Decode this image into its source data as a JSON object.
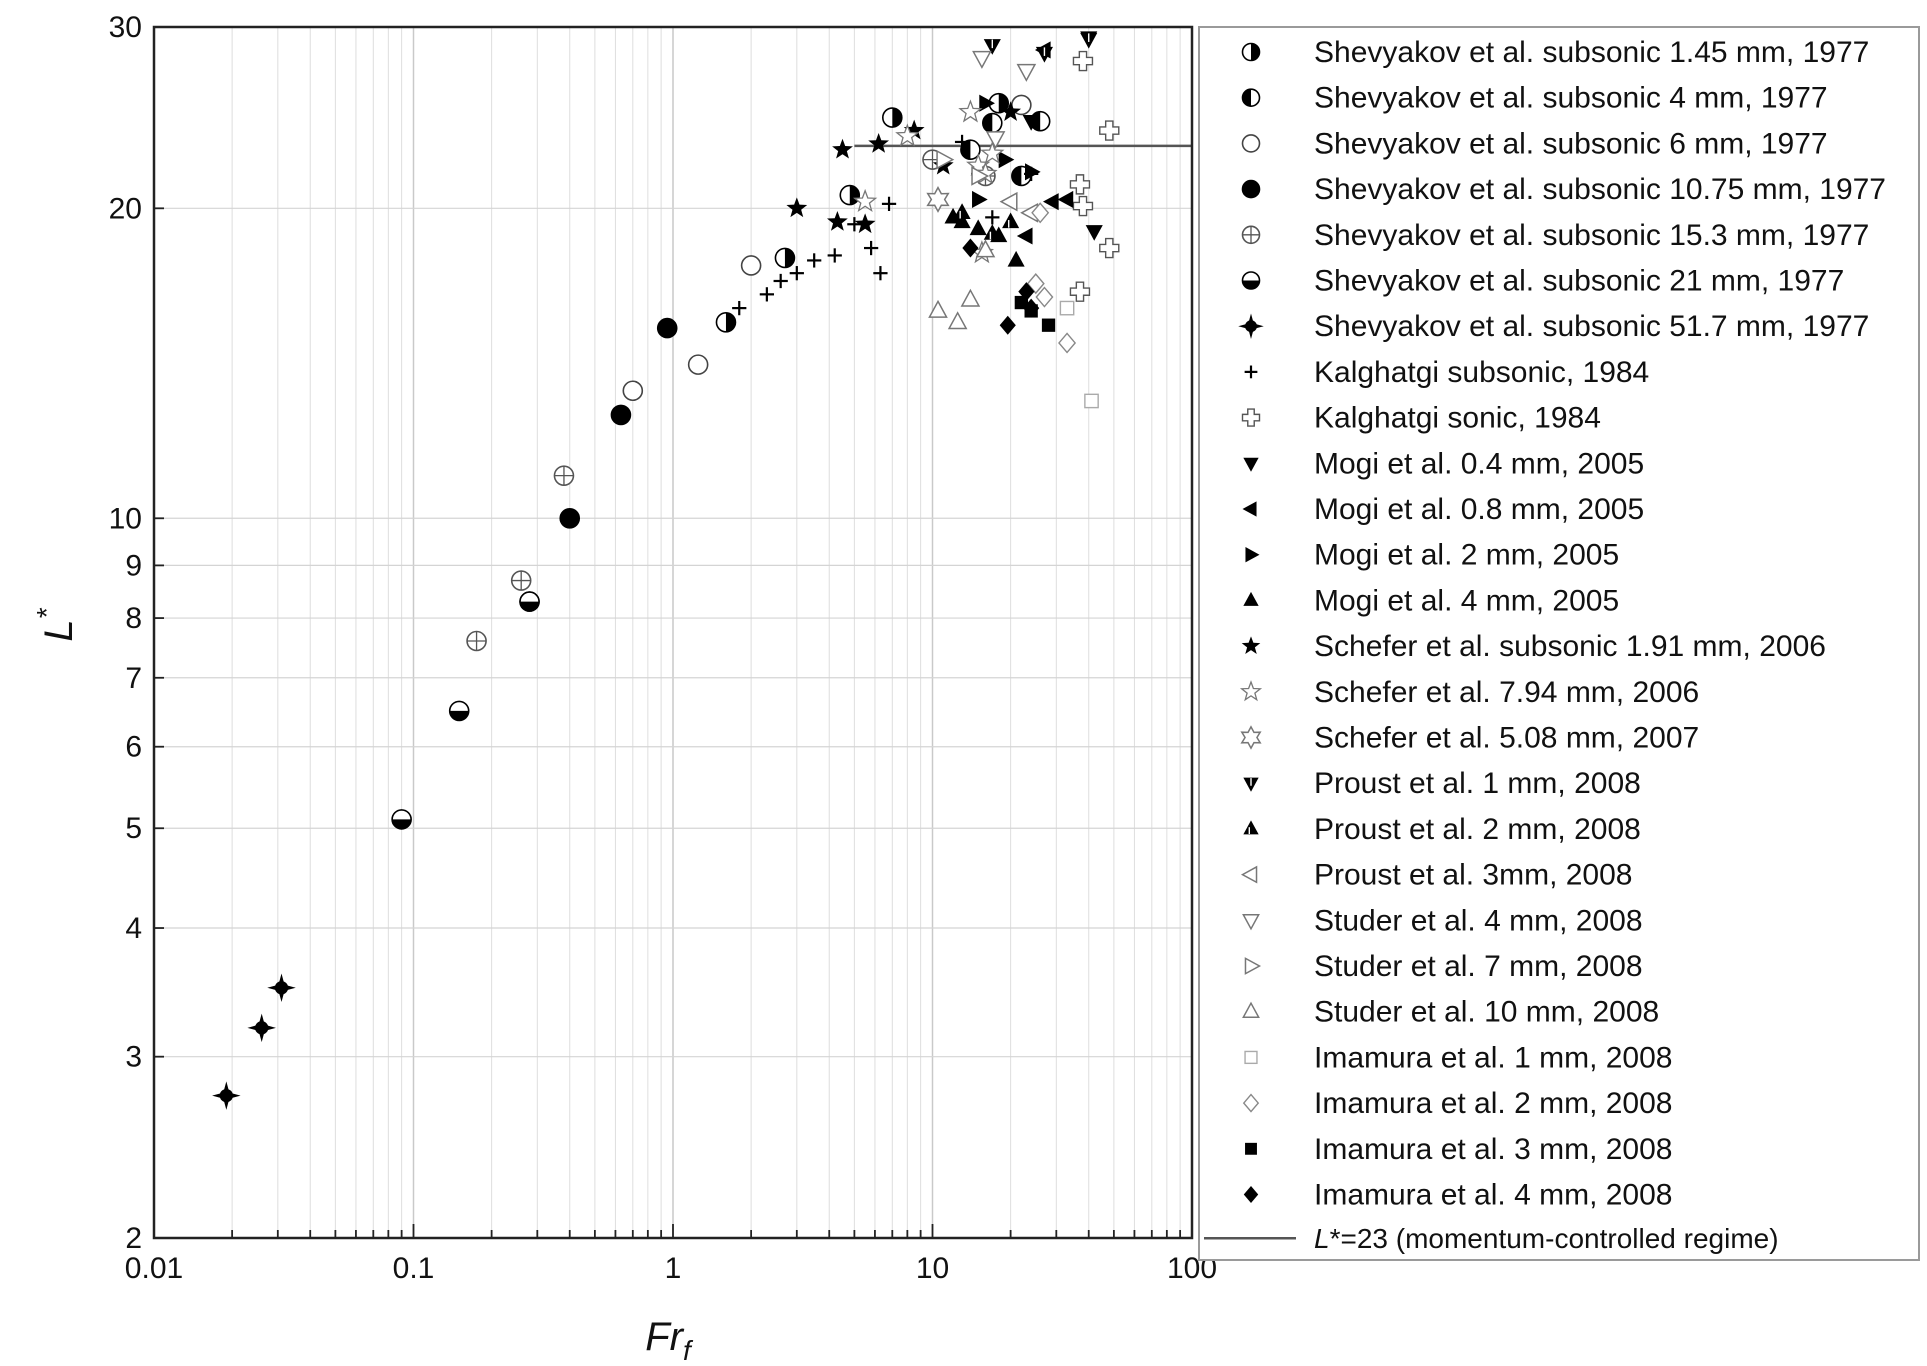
{
  "chart_data": {
    "type": "scatter",
    "x_scale": "log",
    "y_scale": "log",
    "xlim": [
      0.01,
      100
    ],
    "ylim": [
      2,
      30
    ],
    "xlabel_main": "Fr",
    "xlabel_sub": "f",
    "ylabel_main": "L",
    "ylabel_sup": "*",
    "x_ticks": [
      {
        "value": 0.01,
        "label": "0.01"
      },
      {
        "value": 0.1,
        "label": "0.1"
      },
      {
        "value": 1,
        "label": "1"
      },
      {
        "value": 10,
        "label": "10"
      },
      {
        "value": 100,
        "label": "100"
      }
    ],
    "y_ticks": [
      {
        "value": 2,
        "label": "2"
      },
      {
        "value": 3,
        "label": "3"
      },
      {
        "value": 4,
        "label": "4"
      },
      {
        "value": 5,
        "label": "5"
      },
      {
        "value": 6,
        "label": "6"
      },
      {
        "value": 7,
        "label": "7"
      },
      {
        "value": 8,
        "label": "8"
      },
      {
        "value": 9,
        "label": "9"
      },
      {
        "value": 10,
        "label": "10"
      },
      {
        "value": 20,
        "label": "20"
      },
      {
        "value": 30,
        "label": "30"
      }
    ],
    "grid": "vertical minor and major, horizontal at y ticks",
    "legend_position": "right",
    "reference_line": {
      "y": 23,
      "x_start": 5,
      "x_end": 100,
      "label_prefix": "L",
      "label_rest": "*=23 (momentum-controlled regime)"
    },
    "series": [
      {
        "name": "Shevyakov et al. subsonic 1.45 mm, 1977",
        "marker": "half-right",
        "points": [
          [
            7,
            24.5
          ],
          [
            4.8,
            20.6
          ],
          [
            2.7,
            17.9
          ],
          [
            1.6,
            15.5
          ],
          [
            18,
            25.3
          ]
        ]
      },
      {
        "name": "Shevyakov et al. subsonic 4 mm, 1977",
        "marker": "half-left",
        "points": [
          [
            14,
            22.8
          ],
          [
            17,
            24.2
          ],
          [
            22,
            21.5
          ],
          [
            26,
            24.3
          ]
        ]
      },
      {
        "name": "Shevyakov et al. subsonic 6 mm, 1977",
        "marker": "circle-open",
        "points": [
          [
            0.7,
            13.3
          ],
          [
            1.25,
            14.1
          ],
          [
            2,
            17.6
          ],
          [
            22,
            25.2
          ]
        ]
      },
      {
        "name": "Shevyakov et al. subsonic 10.75 mm, 1977",
        "marker": "circle-filled",
        "points": [
          [
            0.95,
            15.3
          ],
          [
            0.63,
            12.6
          ],
          [
            0.4,
            10.0
          ],
          [
            0.28,
            8.3
          ]
        ]
      },
      {
        "name": "Shevyakov et al. subsonic 15.3 mm, 1977",
        "marker": "circle-cross",
        "points": [
          [
            0.38,
            11.0
          ],
          [
            0.26,
            8.7
          ],
          [
            0.175,
            7.6
          ],
          [
            10,
            22.3
          ],
          [
            16,
            21.5
          ]
        ]
      },
      {
        "name": "Shevyakov et al. subsonic 21 mm, 1977",
        "marker": "half-bottom",
        "points": [
          [
            0.15,
            6.5
          ],
          [
            0.09,
            5.1
          ],
          [
            0.28,
            8.3
          ]
        ]
      },
      {
        "name": "Shevyakov et al. subsonic 51.7 mm, 1977",
        "marker": "star4-filled",
        "points": [
          [
            0.031,
            3.5
          ],
          [
            0.026,
            3.2
          ],
          [
            0.019,
            2.75
          ]
        ]
      },
      {
        "name": "Kalghatgi subsonic, 1984",
        "marker": "plus",
        "points": [
          [
            1.8,
            16.0
          ],
          [
            2.3,
            16.5
          ],
          [
            2.6,
            17.0
          ],
          [
            3.0,
            17.3
          ],
          [
            3.5,
            17.8
          ],
          [
            4.2,
            18.0
          ],
          [
            5.0,
            19.3
          ],
          [
            5.8,
            18.3
          ],
          [
            6.3,
            17.3
          ],
          [
            6.8,
            20.2
          ],
          [
            13,
            23.2
          ],
          [
            15,
            21.6
          ],
          [
            17,
            19.6
          ],
          [
            24,
            21.6
          ]
        ]
      },
      {
        "name": "Kalghatgi sonic, 1984",
        "marker": "cross-open",
        "points": [
          [
            38,
            27.8
          ],
          [
            48,
            23.8
          ],
          [
            37,
            21.1
          ],
          [
            38,
            20.1
          ],
          [
            48,
            18.3
          ],
          [
            37,
            16.6
          ]
        ]
      },
      {
        "name": "Mogi et al. 0.4 mm, 2005",
        "marker": "tri-down-filled",
        "points": [
          [
            40,
            29.3
          ],
          [
            42,
            19.0
          ],
          [
            24,
            24.3
          ]
        ]
      },
      {
        "name": "Mogi et al. 0.8 mm, 2005",
        "marker": "tri-left-filled",
        "points": [
          [
            27,
            28.5
          ],
          [
            33,
            20.4
          ],
          [
            29,
            20.3
          ],
          [
            23,
            18.8
          ]
        ]
      },
      {
        "name": "Mogi et al. 2 mm, 2005",
        "marker": "tri-right-filled",
        "points": [
          [
            16,
            25.3
          ],
          [
            24,
            21.7
          ],
          [
            15,
            20.4
          ],
          [
            19,
            22.3
          ]
        ]
      },
      {
        "name": "Mogi et al. 4 mm, 2005",
        "marker": "tri-up-filled",
        "points": [
          [
            13,
            19.4
          ],
          [
            15,
            19.1
          ],
          [
            18,
            18.8
          ],
          [
            21,
            17.8
          ],
          [
            12,
            19.6
          ]
        ]
      },
      {
        "name": "Schefer et al. subsonic 1.91 mm, 2006",
        "marker": "star5-filled",
        "points": [
          [
            3.0,
            20.0
          ],
          [
            4.5,
            22.8
          ],
          [
            6.2,
            23.1
          ],
          [
            8.5,
            23.8
          ],
          [
            4.3,
            19.4
          ],
          [
            5.5,
            19.3
          ],
          [
            11,
            22.0
          ],
          [
            20,
            24.8
          ]
        ]
      },
      {
        "name": "Schefer et al. 7.94 mm, 2006",
        "marker": "star5-open",
        "points": [
          [
            5.5,
            20.3
          ],
          [
            8.0,
            23.5
          ],
          [
            14,
            24.8
          ],
          [
            15,
            22.0
          ],
          [
            16,
            21.6
          ],
          [
            17,
            22.6
          ],
          [
            15.5,
            18.1
          ]
        ]
      },
      {
        "name": "Schefer et al. 5.08 mm, 2007",
        "marker": "star6-open",
        "points": [
          [
            10.5,
            20.4
          ]
        ]
      },
      {
        "name": "Proust et al. 1 mm, 2008",
        "marker": "tri-down-hatched",
        "points": [
          [
            17,
            28.8
          ],
          [
            27,
            28.3
          ],
          [
            40,
            29.2
          ]
        ]
      },
      {
        "name": "Proust et al. 2 mm, 2008",
        "marker": "tri-up-hatched",
        "points": [
          [
            13,
            19.8
          ],
          [
            20,
            19.4
          ],
          [
            17,
            18.9
          ]
        ]
      },
      {
        "name": "Proust et al. 3mm, 2008",
        "marker": "tri-left-open",
        "points": [
          [
            20,
            20.3
          ],
          [
            24,
            19.8
          ]
        ]
      },
      {
        "name": "Studer et al. 4 mm, 2008",
        "marker": "tri-down-open",
        "points": [
          [
            15.5,
            28.0
          ],
          [
            23,
            27.2
          ],
          [
            17.5,
            23.4
          ]
        ]
      },
      {
        "name": "Studer et al. 7 mm, 2008",
        "marker": "tri-right-open",
        "points": [
          [
            11,
            22.3
          ],
          [
            15,
            21.5
          ]
        ]
      },
      {
        "name": "Studer et al. 10 mm, 2008",
        "marker": "tri-up-open",
        "points": [
          [
            10.5,
            15.9
          ],
          [
            12.5,
            15.5
          ],
          [
            14,
            16.3
          ],
          [
            16,
            18.2
          ]
        ]
      },
      {
        "name": "Imamura et al. 1 mm, 2008",
        "marker": "square-open",
        "points": [
          [
            33,
            16.0
          ],
          [
            41,
            13.0
          ]
        ]
      },
      {
        "name": "Imamura et al. 2 mm, 2008",
        "marker": "diamond-open",
        "points": [
          [
            25,
            16.9
          ],
          [
            27,
            16.4
          ],
          [
            33,
            14.8
          ],
          [
            26,
            19.8
          ]
        ]
      },
      {
        "name": "Imamura et al. 3 mm, 2008",
        "marker": "square-filled",
        "points": [
          [
            22,
            16.2
          ],
          [
            24,
            15.9
          ],
          [
            28,
            15.4
          ]
        ]
      },
      {
        "name": "Imamura et al. 4 mm, 2008",
        "marker": "diamond-filled",
        "points": [
          [
            19.5,
            15.4
          ],
          [
            23,
            16.6
          ],
          [
            24,
            16.0
          ],
          [
            14,
            18.3
          ]
        ]
      }
    ]
  }
}
